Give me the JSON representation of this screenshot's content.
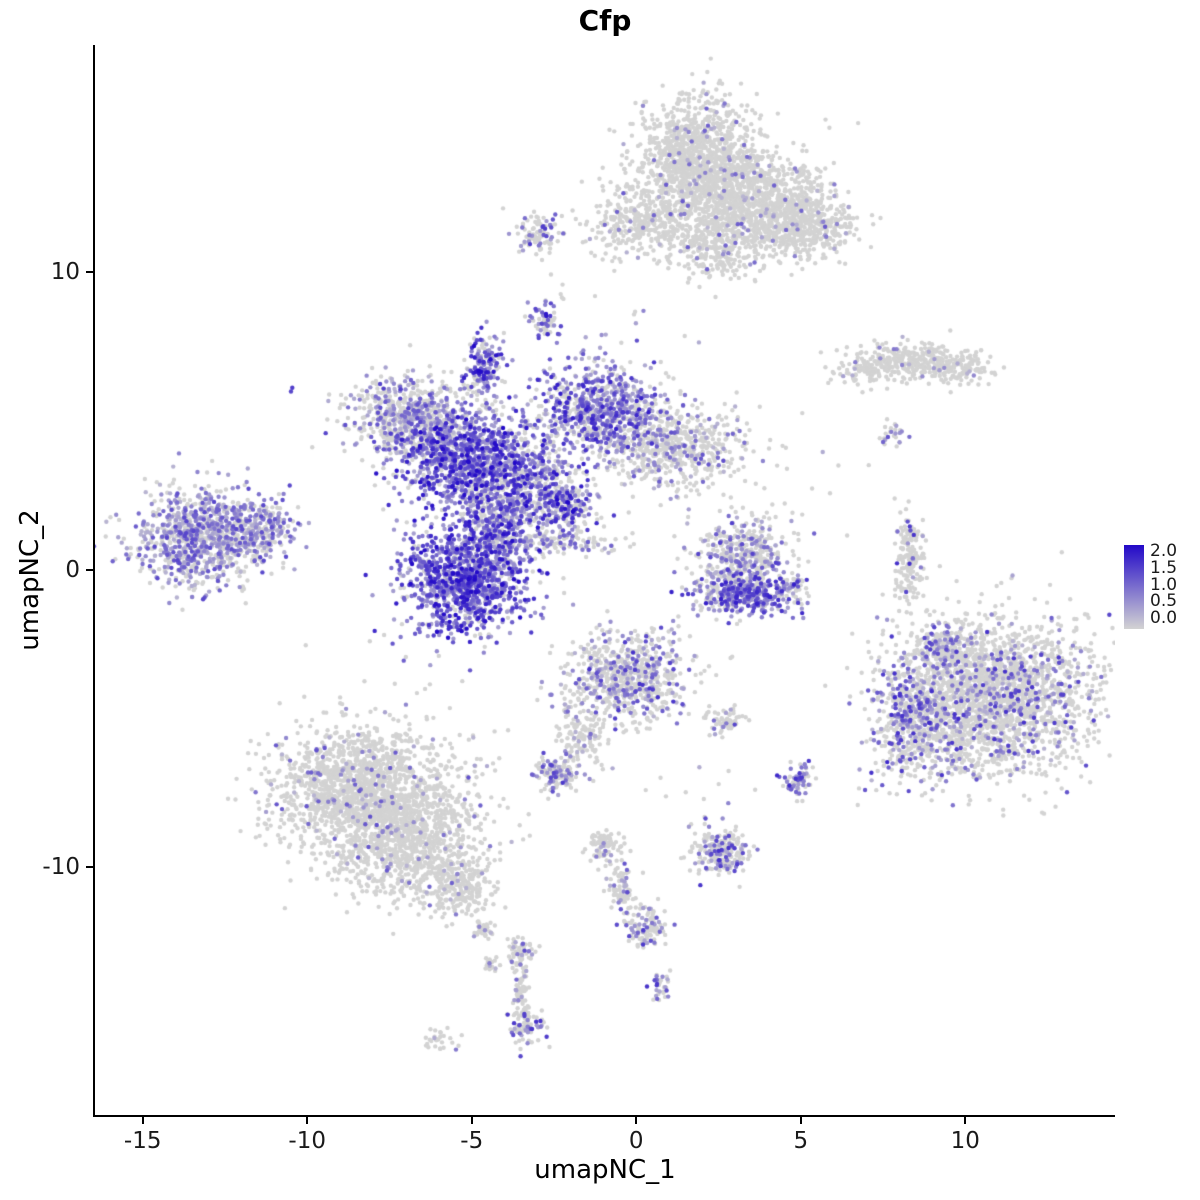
{
  "title": "Cfp",
  "chart_data": {
    "type": "scatter",
    "title": "Cfp",
    "xlabel": "umapNC_1",
    "ylabel": "umapNC_2",
    "x_range": [
      -16.45,
      14.55
    ],
    "y_range": [
      -18.35,
      17.65
    ],
    "x_ticks": [
      -15,
      -10,
      -5,
      0,
      5,
      10
    ],
    "y_ticks": [
      -10,
      0,
      10
    ],
    "grid": false,
    "point_radius": 2.2,
    "seed": 42,
    "legend": {
      "position": "right",
      "labels": [
        "2.0",
        "1.5",
        "1.0",
        "0.5",
        "0.0"
      ],
      "min": 0.0,
      "max": 2.0,
      "low_color": "#d3d3d3",
      "high_color": "#2209c8"
    },
    "clusters": [
      {
        "name": "top-main",
        "cx": 1.8,
        "cy": 13.8,
        "sx": 0.95,
        "sy": 1.0,
        "n": 1200,
        "frac": 0.05,
        "lo": 0.3,
        "hi": 1.2
      },
      {
        "name": "top-right",
        "cx": 3.4,
        "cy": 12.3,
        "sx": 1.1,
        "sy": 0.8,
        "n": 1000,
        "frac": 0.05,
        "lo": 0.3,
        "hi": 1.2
      },
      {
        "name": "top-right-arm",
        "cx": 5.1,
        "cy": 11.6,
        "sx": 0.8,
        "sy": 0.6,
        "n": 450,
        "frac": 0.04,
        "lo": 0.3,
        "hi": 1.3
      },
      {
        "name": "top-left-arm",
        "cx": 0.2,
        "cy": 11.7,
        "sx": 0.8,
        "sy": 0.55,
        "n": 320,
        "frac": 0.05,
        "lo": 0.3,
        "hi": 1.2
      },
      {
        "name": "top-bottom-spur",
        "cx": 2.3,
        "cy": 10.7,
        "sx": 0.7,
        "sy": 0.5,
        "n": 220,
        "frac": 0.05,
        "lo": 0.3,
        "hi": 1.2
      },
      {
        "name": "upper-small",
        "cx": -2.9,
        "cy": 11.3,
        "sx": 0.4,
        "sy": 0.35,
        "n": 100,
        "frac": 0.3,
        "lo": 0.5,
        "hi": 1.6
      },
      {
        "name": "tiny-mid-upper",
        "cx": -2.8,
        "cy": 8.4,
        "sx": 0.22,
        "sy": 0.28,
        "n": 55,
        "frac": 0.55,
        "lo": 0.6,
        "hi": 2.0
      },
      {
        "name": "flame",
        "cx": -4.6,
        "cy": 6.9,
        "sx": 0.3,
        "sy": 0.55,
        "n": 160,
        "frac": 0.7,
        "lo": 0.5,
        "hi": 2.0
      },
      {
        "name": "central-left-lobe",
        "cx": -6.7,
        "cy": 5.1,
        "sx": 1.05,
        "sy": 0.7,
        "n": 750,
        "frac": 0.45,
        "lo": 0.3,
        "hi": 1.5
      },
      {
        "name": "central-core",
        "cx": -5.2,
        "cy": 3.6,
        "sx": 0.95,
        "sy": 0.8,
        "n": 950,
        "frac": 0.8,
        "lo": 0.5,
        "hi": 2.0
      },
      {
        "name": "central-neck",
        "cx": -3.3,
        "cy": 3.1,
        "sx": 0.7,
        "sy": 0.9,
        "n": 450,
        "frac": 0.6,
        "lo": 0.4,
        "hi": 1.8
      },
      {
        "name": "central-right-lobe",
        "cx": -1.2,
        "cy": 5.4,
        "sx": 0.95,
        "sy": 0.75,
        "n": 750,
        "frac": 0.65,
        "lo": 0.4,
        "hi": 1.8
      },
      {
        "name": "central-right-gray",
        "cx": 1.1,
        "cy": 4.1,
        "sx": 1.15,
        "sy": 0.7,
        "n": 620,
        "frac": 0.18,
        "lo": 0.3,
        "hi": 1.3
      },
      {
        "name": "central-bottom-blob",
        "cx": -5.2,
        "cy": -0.3,
        "sx": 0.95,
        "sy": 0.95,
        "n": 1150,
        "frac": 0.85,
        "lo": 0.5,
        "hi": 2.0
      },
      {
        "name": "central-bridge",
        "cx": -4.3,
        "cy": 1.6,
        "sx": 0.6,
        "sy": 0.8,
        "n": 350,
        "frac": 0.6,
        "lo": 0.4,
        "hi": 1.8
      },
      {
        "name": "central-right-spur",
        "cx": -2.2,
        "cy": 2.2,
        "sx": 0.5,
        "sy": 0.5,
        "n": 220,
        "frac": 0.55,
        "lo": 0.4,
        "hi": 2.0
      },
      {
        "name": "dark-dot",
        "cx": -2.05,
        "cy": 2.3,
        "sx": 0.04,
        "sy": 0.04,
        "n": 2,
        "frac": 1.0,
        "lo": 1.9,
        "hi": 2.0
      },
      {
        "name": "central-streak",
        "cx": -2.4,
        "cy": 0.9,
        "sx": 0.9,
        "sy": 0.22,
        "n": 130,
        "frac": 0.3,
        "lo": 0.3,
        "hi": 1.2
      },
      {
        "name": "left-main",
        "cx": -13.2,
        "cy": 1.1,
        "sx": 1.0,
        "sy": 0.8,
        "n": 950,
        "frac": 0.55,
        "lo": 0.3,
        "hi": 1.4
      },
      {
        "name": "left-tip",
        "cx": -11.4,
        "cy": 1.4,
        "sx": 0.55,
        "sy": 0.45,
        "n": 230,
        "frac": 0.5,
        "lo": 0.3,
        "hi": 1.4
      },
      {
        "name": "isolated-dot",
        "cx": -10.5,
        "cy": 6.1,
        "sx": 0.05,
        "sy": 0.05,
        "n": 2,
        "frac": 1.0,
        "lo": 1.2,
        "hi": 1.6
      },
      {
        "name": "mid-right-top",
        "cx": 3.2,
        "cy": 0.3,
        "sx": 0.75,
        "sy": 0.75,
        "n": 520,
        "frac": 0.3,
        "lo": 0.3,
        "hi": 1.5
      },
      {
        "name": "mid-right-bottom",
        "cx": 3.3,
        "cy": -0.9,
        "sx": 0.8,
        "sy": 0.35,
        "n": 320,
        "frac": 0.75,
        "lo": 0.5,
        "hi": 1.8
      },
      {
        "name": "mid-right-tail",
        "cx": 4.7,
        "cy": -0.6,
        "sx": 0.25,
        "sy": 0.2,
        "n": 40,
        "frac": 0.4,
        "lo": 0.4,
        "hi": 1.5
      },
      {
        "name": "arc-left",
        "cx": 7.1,
        "cy": 6.8,
        "sx": 0.5,
        "sy": 0.3,
        "n": 140,
        "frac": 0.05,
        "lo": 0.3,
        "hi": 1.0
      },
      {
        "name": "arc-mid",
        "cx": 8.6,
        "cy": 7.1,
        "sx": 0.7,
        "sy": 0.3,
        "n": 240,
        "frac": 0.05,
        "lo": 0.3,
        "hi": 1.0
      },
      {
        "name": "arc-right",
        "cx": 9.9,
        "cy": 6.8,
        "sx": 0.5,
        "sy": 0.25,
        "n": 120,
        "frac": 0.05,
        "lo": 0.3,
        "hi": 1.0
      },
      {
        "name": "arc-dots",
        "cx": 7.7,
        "cy": 4.5,
        "sx": 0.2,
        "sy": 0.2,
        "n": 25,
        "frac": 0.3,
        "lo": 0.5,
        "hi": 1.3
      },
      {
        "name": "right-sliver",
        "cx": 8.3,
        "cy": 0.3,
        "sx": 0.22,
        "sy": 0.8,
        "n": 170,
        "frac": 0.08,
        "lo": 0.4,
        "hi": 1.6
      },
      {
        "name": "sliver-top-dot",
        "cx": 8.3,
        "cy": 1.3,
        "sx": 0.06,
        "sy": 0.06,
        "n": 2,
        "frac": 1.0,
        "lo": 1.2,
        "hi": 1.6
      },
      {
        "name": "right-big-main",
        "cx": 10.8,
        "cy": -4.3,
        "sx": 1.5,
        "sy": 1.3,
        "n": 2300,
        "frac": 0.17,
        "lo": 0.3,
        "hi": 1.6
      },
      {
        "name": "right-big-left-arm",
        "cx": 8.4,
        "cy": -5.1,
        "sx": 0.6,
        "sy": 1.0,
        "n": 450,
        "frac": 0.38,
        "lo": 0.4,
        "hi": 1.7
      },
      {
        "name": "right-big-top",
        "cx": 9.4,
        "cy": -2.6,
        "sx": 0.5,
        "sy": 0.4,
        "n": 180,
        "frac": 0.3,
        "lo": 0.4,
        "hi": 1.5
      },
      {
        "name": "bottom-center-main",
        "cx": -0.3,
        "cy": -3.6,
        "sx": 0.9,
        "sy": 0.8,
        "n": 720,
        "frac": 0.28,
        "lo": 0.3,
        "hi": 1.6
      },
      {
        "name": "bottom-center-tail",
        "cx": -1.6,
        "cy": -5.6,
        "sx": 0.35,
        "sy": 0.55,
        "n": 130,
        "frac": 0.15,
        "lo": 0.3,
        "hi": 1.0
      },
      {
        "name": "bottom-center-drop",
        "cx": -2.4,
        "cy": -6.9,
        "sx": 0.3,
        "sy": 0.3,
        "n": 140,
        "frac": 0.4,
        "lo": 0.4,
        "hi": 1.6
      },
      {
        "name": "small-mid-bottom",
        "cx": 2.7,
        "cy": -5.1,
        "sx": 0.3,
        "sy": 0.25,
        "n": 65,
        "frac": 0.3,
        "lo": 0.4,
        "hi": 1.4
      },
      {
        "name": "small-purple-bottom",
        "cx": 4.9,
        "cy": -7.1,
        "sx": 0.25,
        "sy": 0.3,
        "n": 75,
        "frac": 0.5,
        "lo": 0.5,
        "hi": 1.7
      },
      {
        "name": "bottomleft-main",
        "cx": -8.3,
        "cy": -7.3,
        "sx": 1.4,
        "sy": 1.0,
        "n": 1600,
        "frac": 0.06,
        "lo": 0.3,
        "hi": 1.3
      },
      {
        "name": "bottomleft-lower",
        "cx": -7.0,
        "cy": -9.3,
        "sx": 1.2,
        "sy": 0.9,
        "n": 950,
        "frac": 0.06,
        "lo": 0.3,
        "hi": 1.3
      },
      {
        "name": "bottomleft-tail",
        "cx": -5.3,
        "cy": -10.7,
        "sx": 0.5,
        "sy": 0.5,
        "n": 200,
        "frac": 0.08,
        "lo": 0.3,
        "hi": 1.2
      },
      {
        "name": "bottomleft-drip1",
        "cx": -4.7,
        "cy": -12.1,
        "sx": 0.15,
        "sy": 0.2,
        "n": 35,
        "frac": 0.1,
        "lo": 0.3,
        "hi": 1.0
      },
      {
        "name": "bottomleft-drip2",
        "cx": -4.4,
        "cy": -13.3,
        "sx": 0.12,
        "sy": 0.15,
        "n": 20,
        "frac": 0.1,
        "lo": 0.3,
        "hi": 1.0
      },
      {
        "name": "trail-1",
        "cx": -1.0,
        "cy": -9.3,
        "sx": 0.3,
        "sy": 0.3,
        "n": 90,
        "frac": 0.15,
        "lo": 0.3,
        "hi": 1.2
      },
      {
        "name": "trail-2",
        "cx": -0.4,
        "cy": -10.7,
        "sx": 0.25,
        "sy": 0.45,
        "n": 80,
        "frac": 0.2,
        "lo": 0.3,
        "hi": 1.4
      },
      {
        "name": "trail-3",
        "cx": 0.3,
        "cy": -12.0,
        "sx": 0.35,
        "sy": 0.35,
        "n": 110,
        "frac": 0.3,
        "lo": 0.4,
        "hi": 1.6
      },
      {
        "name": "trail-4",
        "cx": 0.7,
        "cy": -14.0,
        "sx": 0.18,
        "sy": 0.25,
        "n": 35,
        "frac": 0.4,
        "lo": 0.4,
        "hi": 1.6
      },
      {
        "name": "small-right-trail",
        "cx": 2.6,
        "cy": -9.5,
        "sx": 0.42,
        "sy": 0.38,
        "n": 230,
        "frac": 0.33,
        "lo": 0.4,
        "hi": 1.6
      },
      {
        "name": "drip-a",
        "cx": -3.5,
        "cy": -12.9,
        "sx": 0.2,
        "sy": 0.3,
        "n": 60,
        "frac": 0.25,
        "lo": 0.4,
        "hi": 1.5
      },
      {
        "name": "drip-b",
        "cx": -3.5,
        "cy": -14.1,
        "sx": 0.13,
        "sy": 0.45,
        "n": 50,
        "frac": 0.2,
        "lo": 0.4,
        "hi": 1.5
      },
      {
        "name": "drip-c",
        "cx": -3.4,
        "cy": -15.3,
        "sx": 0.25,
        "sy": 0.3,
        "n": 85,
        "frac": 0.35,
        "lo": 0.4,
        "hi": 1.6
      },
      {
        "name": "bottom-left-speck",
        "cx": -6.0,
        "cy": -15.8,
        "sx": 0.28,
        "sy": 0.15,
        "n": 30,
        "frac": 0.08,
        "lo": 0.3,
        "hi": 1.0
      },
      {
        "name": "stray-1",
        "cx": -2.4,
        "cy": 9.3,
        "sx": 0.3,
        "sy": 0.2,
        "n": 6,
        "frac": 0.1,
        "lo": 0.3,
        "hi": 1.0
      },
      {
        "name": "stray-2",
        "cx": 0.6,
        "cy": 8.2,
        "sx": 0.9,
        "sy": 0.4,
        "n": 8,
        "frac": 0.1,
        "lo": 0.3,
        "hi": 1.0
      },
      {
        "name": "stray-3",
        "cx": 5.5,
        "cy": 2.5,
        "sx": 1.2,
        "sy": 1.2,
        "n": 10,
        "frac": 0.1,
        "lo": 0.3,
        "hi": 1.0
      },
      {
        "name": "stray-4",
        "cx": -7.5,
        "cy": -3.5,
        "sx": 1.5,
        "sy": 0.8,
        "n": 12,
        "frac": 0.1,
        "lo": 0.3,
        "hi": 1.0
      },
      {
        "name": "stray-5",
        "cx": 1.5,
        "cy": -7.5,
        "sx": 1.0,
        "sy": 0.6,
        "n": 10,
        "frac": 0.15,
        "lo": 0.3,
        "hi": 1.0
      }
    ]
  }
}
